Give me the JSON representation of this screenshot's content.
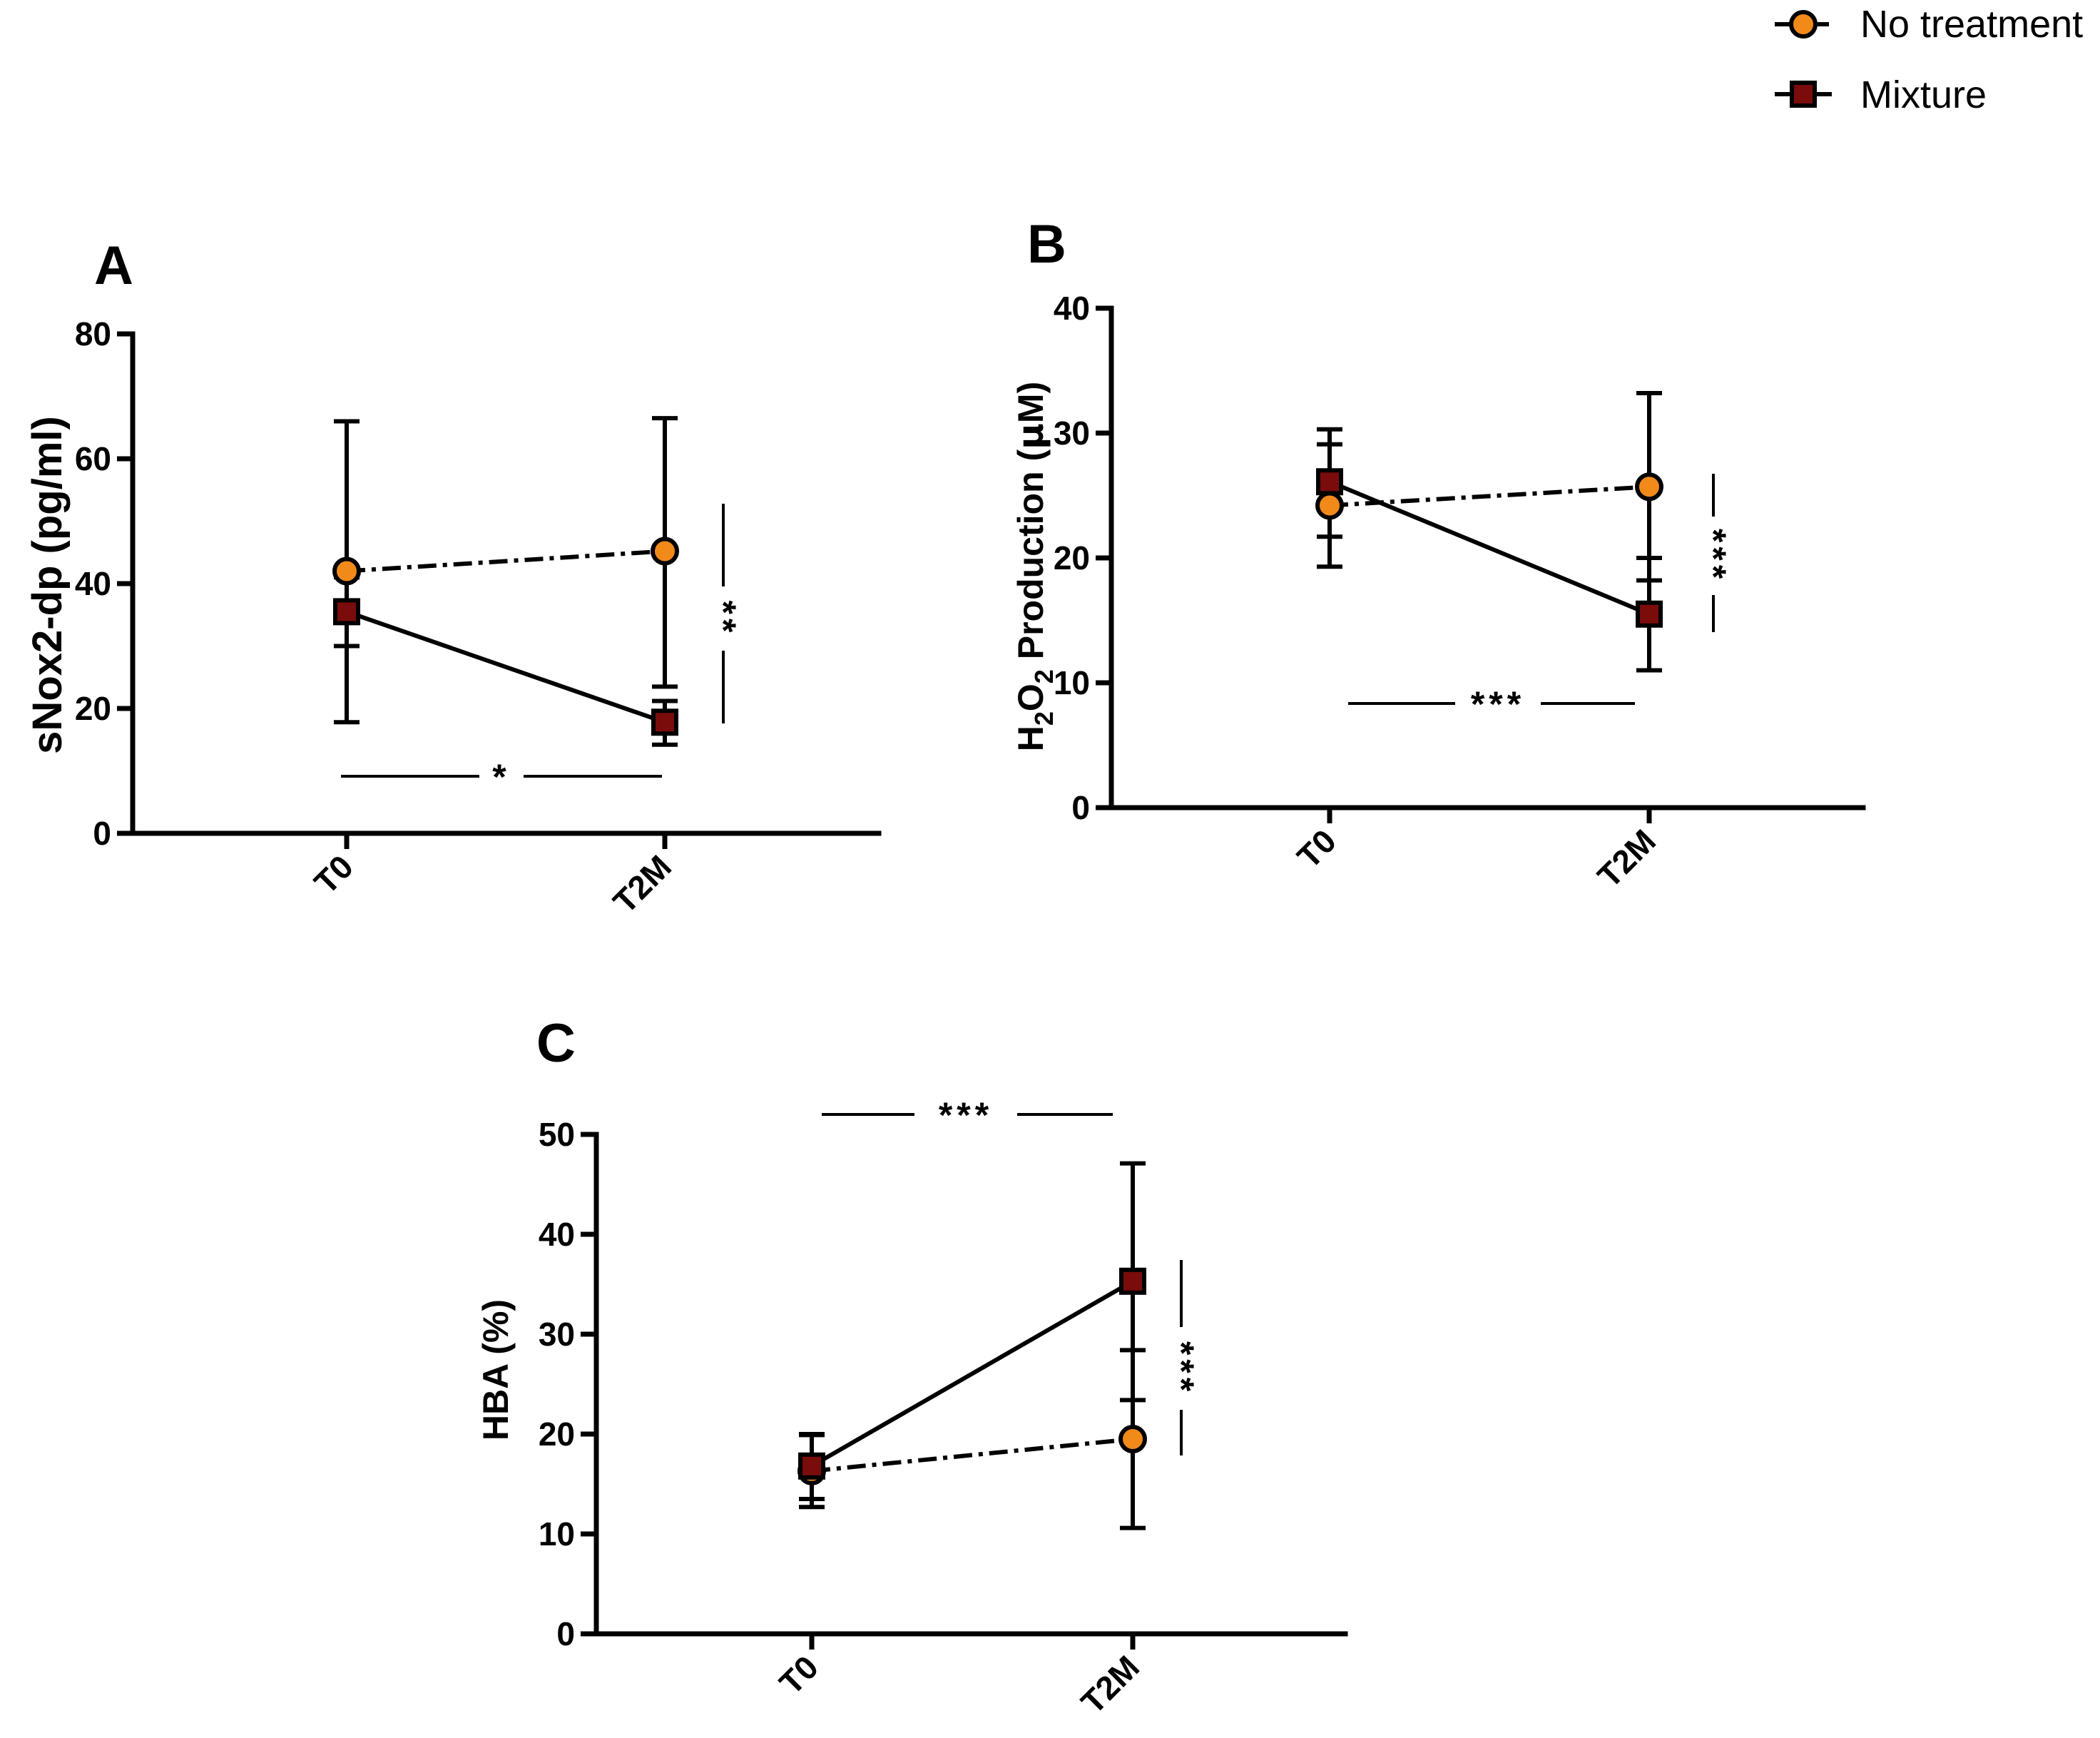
{
  "legend": {
    "items": [
      {
        "label": "No treatment",
        "marker": "circle",
        "color": "#F28A1A",
        "line": "dash-dot"
      },
      {
        "label": "Mixture",
        "marker": "square",
        "color": "#7A0C0C",
        "line": "solid"
      }
    ]
  },
  "chart_data": [
    {
      "panel": "A",
      "type": "line",
      "ylabel": "sNox2-dp (pg/ml)",
      "categories": [
        "T0",
        "T2M"
      ],
      "ylim": [
        0,
        80
      ],
      "yticks": [
        "0",
        "20",
        "40",
        "60",
        "80"
      ],
      "series": [
        {
          "name": "No treatment",
          "values": [
            42,
            45.2
          ],
          "err_low": [
            30,
            23.5
          ],
          "err_high": [
            66,
            66.5
          ]
        },
        {
          "name": "Mixture",
          "values": [
            35.5,
            17.8
          ],
          "err_low": [
            17.8,
            14.2
          ],
          "err_high": [
            41,
            21.2
          ]
        }
      ],
      "annotations": {
        "horizontal": "*",
        "vertical": "**"
      }
    },
    {
      "panel": "B",
      "type": "line",
      "ylabel_parts": [
        "H",
        "2",
        "O",
        "2",
        " Production (",
        "μ",
        "M)"
      ],
      "categories": [
        "T0",
        "T2M"
      ],
      "ylim": [
        0,
        40
      ],
      "yticks": [
        "0",
        "10",
        "20",
        "30",
        "40"
      ],
      "series": [
        {
          "name": "No treatment",
          "values": [
            24.2,
            25.7
          ],
          "err_low": [
            19.3,
            18.2
          ],
          "err_high": [
            29.1,
            33.2
          ]
        },
        {
          "name": "Mixture",
          "values": [
            26.1,
            15.5
          ],
          "err_low": [
            21.7,
            11.0
          ],
          "err_high": [
            30.3,
            20.0
          ]
        }
      ],
      "annotations": {
        "horizontal": "***",
        "vertical": "***"
      }
    },
    {
      "panel": "C",
      "type": "line",
      "ylabel": "HBA (%)",
      "categories": [
        "T0",
        "T2M"
      ],
      "ylim": [
        0,
        50
      ],
      "yticks": [
        "0",
        "10",
        "20",
        "30",
        "40",
        "50"
      ],
      "series": [
        {
          "name": "No treatment",
          "values": [
            16.3,
            19.5
          ],
          "err_low": [
            12.7,
            10.6
          ],
          "err_high": [
            19.9,
            28.4
          ]
        },
        {
          "name": "Mixture",
          "values": [
            16.8,
            35.3
          ],
          "err_low": [
            13.5,
            23.4
          ],
          "err_high": [
            20.0,
            47.1
          ]
        }
      ],
      "annotations": {
        "horizontal": "***",
        "vertical": "***"
      }
    }
  ]
}
